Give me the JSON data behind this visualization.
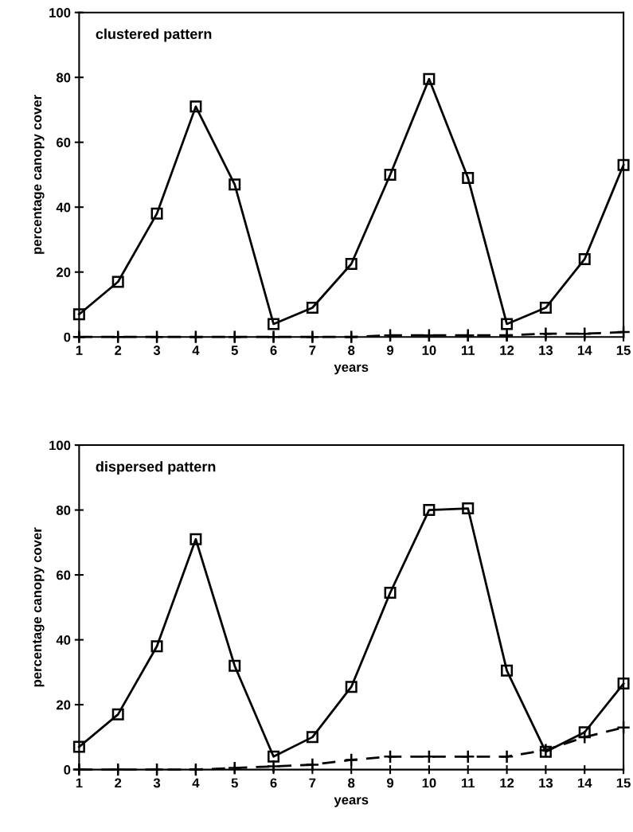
{
  "chart_data": [
    {
      "type": "line",
      "title": "clustered pattern",
      "xlabel": "years",
      "ylabel": "percentage canopy cover",
      "x": [
        1,
        2,
        3,
        4,
        5,
        6,
        7,
        8,
        9,
        10,
        11,
        12,
        13,
        14,
        15
      ],
      "xlim": [
        1,
        15
      ],
      "xticks": [
        1,
        2,
        3,
        4,
        5,
        6,
        7,
        8,
        9,
        10,
        11,
        12,
        13,
        14,
        15
      ],
      "ylim": [
        0,
        100
      ],
      "yticks": [
        0,
        20,
        40,
        60,
        80,
        100
      ],
      "grid": false,
      "legend": false,
      "series": [
        {
          "color": "#000000",
          "marker": "square",
          "line_style": "solid",
          "values": [
            7,
            17,
            38,
            71,
            47,
            4,
            9,
            22.5,
            50,
            79.5,
            49,
            4,
            9,
            24,
            53
          ]
        },
        {
          "color": "#000000",
          "marker": "cross",
          "line_style": "dashed",
          "values": [
            0,
            0,
            0,
            0,
            0,
            0,
            0,
            0,
            0.5,
            0.5,
            0.5,
            0.5,
            1,
            1,
            1.5
          ]
        }
      ]
    },
    {
      "type": "line",
      "title": "dispersed pattern",
      "xlabel": "years",
      "ylabel": "percentage canopy cover",
      "x": [
        1,
        2,
        3,
        4,
        5,
        6,
        7,
        8,
        9,
        10,
        11,
        12,
        13,
        14,
        15
      ],
      "xlim": [
        1,
        15
      ],
      "xticks": [
        1,
        2,
        3,
        4,
        5,
        6,
        7,
        8,
        9,
        10,
        11,
        12,
        13,
        14,
        15
      ],
      "ylim": [
        0,
        100
      ],
      "yticks": [
        0,
        20,
        40,
        60,
        80,
        100
      ],
      "grid": false,
      "legend": false,
      "series": [
        {
          "color": "#000000",
          "marker": "square",
          "line_style": "solid",
          "values": [
            7,
            17,
            38,
            71,
            32,
            4,
            10,
            25.5,
            54.5,
            80,
            80.5,
            30.5,
            5.5,
            11.5,
            26.5
          ]
        },
        {
          "color": "#000000",
          "marker": "cross",
          "line_style": "dashed",
          "values": [
            0,
            0,
            0,
            0,
            0.5,
            1,
            1.5,
            3,
            4,
            4,
            4,
            4,
            6,
            10,
            13
          ]
        }
      ]
    }
  ]
}
